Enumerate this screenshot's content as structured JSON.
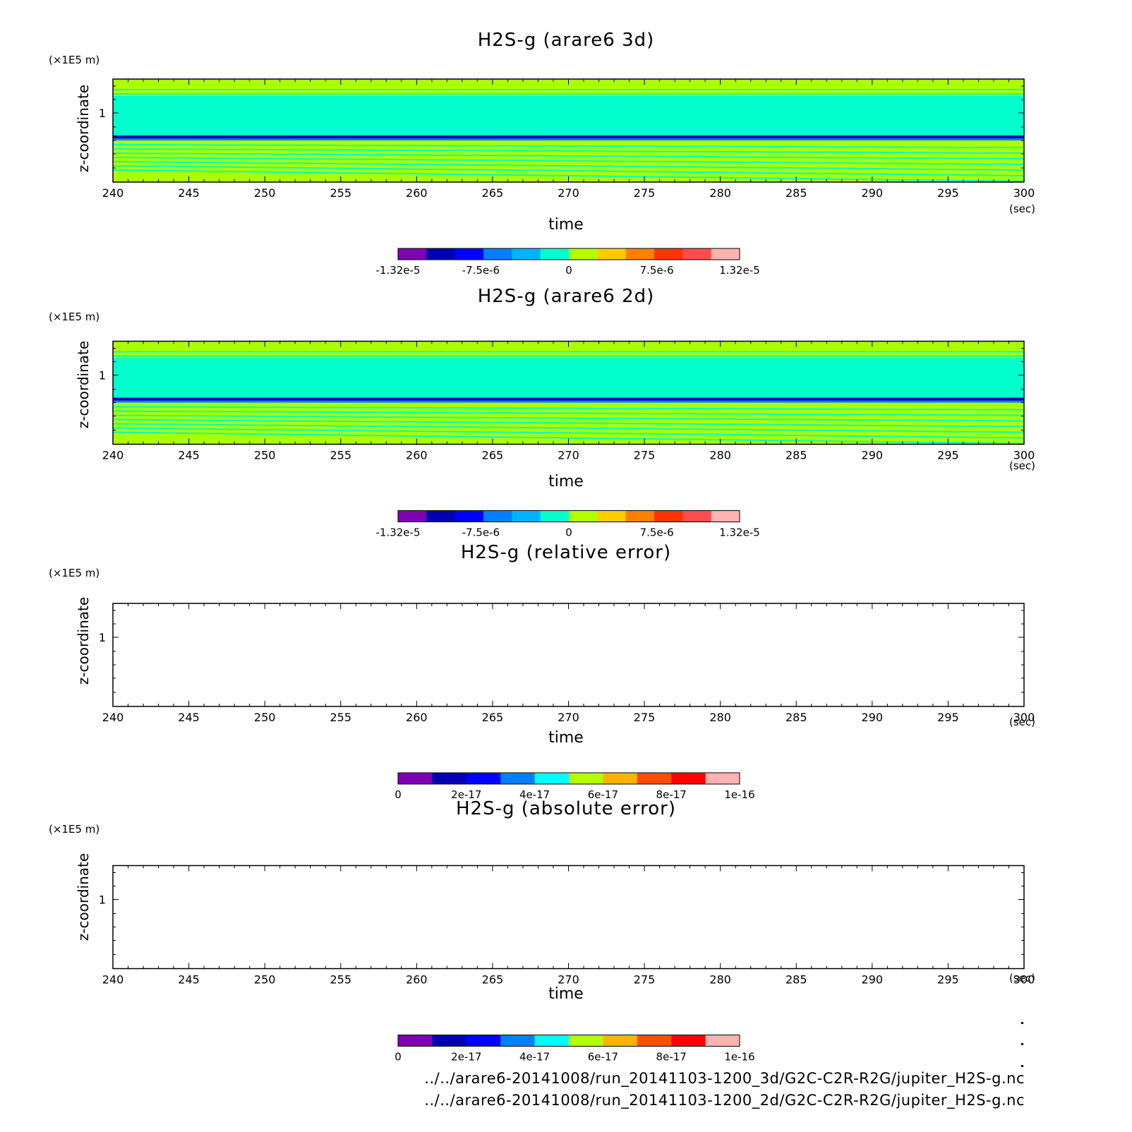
{
  "footer": {
    "files": [
      "../../arare6-20141008/run_20141103-1200_3d/G2C-C2R-R2G/jupiter_H2S-g.nc",
      "../../arare6-20141008/run_20141103-1200_2d/G2C-C2R-R2G/jupiter_H2S-g.nc"
    ]
  },
  "chart_data": [
    {
      "type": "heatmap",
      "title": "H2S-g (arare6 3d)",
      "xlabel": "time",
      "x_unit": "(sec)",
      "ylabel": "z-coordinate",
      "y_unit": "(×1E5 m)",
      "xlim": [
        240,
        300
      ],
      "x_ticks": [
        "240",
        "245",
        "250",
        "255",
        "260",
        "265",
        "270",
        "275",
        "280",
        "285",
        "290",
        "295",
        "300"
      ],
      "y_ticks": [
        "1"
      ],
      "colorbar": {
        "ticks": [
          "-1.32e-5",
          "-7.5e-6",
          "0",
          "7.5e-6",
          "1.32e-5"
        ],
        "colors": [
          "#7f00b2",
          "#0000b2",
          "#0000ff",
          "#0080ff",
          "#00b2ff",
          "#00ffcc",
          "#b2ff00",
          "#ffcc00",
          "#ff8000",
          "#ff3300",
          "#ff4d4d",
          "#ffb2b2"
        ]
      },
      "fields": {
        "upper_mid_band": {
          "color": "#00ffcc"
        },
        "background": {
          "color": "#aaff00"
        },
        "interface_line": {
          "color": "#0000b2"
        }
      }
    },
    {
      "type": "heatmap",
      "title": "H2S-g (arare6 2d)",
      "xlabel": "time",
      "x_unit": "(sec)",
      "ylabel": "z-coordinate",
      "y_unit": "(×1E5 m)",
      "xlim": [
        240,
        300
      ],
      "x_ticks": [
        "240",
        "245",
        "250",
        "255",
        "260",
        "265",
        "270",
        "275",
        "280",
        "285",
        "290",
        "295",
        "300"
      ],
      "y_ticks": [
        "1"
      ],
      "colorbar": {
        "ticks": [
          "-1.32e-5",
          "-7.5e-6",
          "0",
          "7.5e-6",
          "1.32e-5"
        ],
        "colors": [
          "#7f00b2",
          "#0000b2",
          "#0000ff",
          "#0080ff",
          "#00b2ff",
          "#00ffcc",
          "#b2ff00",
          "#ffcc00",
          "#ff8000",
          "#ff3300",
          "#ff4d4d",
          "#ffb2b2"
        ]
      },
      "fields": {
        "upper_mid_band": {
          "color": "#00ffcc"
        },
        "background": {
          "color": "#aaff00"
        },
        "interface_line": {
          "color": "#0000b2"
        }
      }
    },
    {
      "type": "heatmap",
      "title": "H2S-g (relative error)",
      "xlabel": "time",
      "x_unit": "(sec)",
      "ylabel": "z-coordinate",
      "y_unit": "(×1E5 m)",
      "xlim": [
        240,
        300
      ],
      "x_ticks": [
        "240",
        "245",
        "250",
        "255",
        "260",
        "265",
        "270",
        "275",
        "280",
        "285",
        "290",
        "295",
        "300"
      ],
      "y_ticks": [
        "1"
      ],
      "colorbar": {
        "ticks": [
          "0",
          "2e-17",
          "4e-17",
          "6e-17",
          "8e-17",
          "1e-16"
        ],
        "colors": [
          "#7f00b2",
          "#0000b2",
          "#0000ff",
          "#0080ff",
          "#00ffff",
          "#b2ff00",
          "#ffb200",
          "#ff4d00",
          "#ff0000",
          "#ffb2b2"
        ]
      },
      "empty": true
    },
    {
      "type": "heatmap",
      "title": "H2S-g (absolute error)",
      "xlabel": "time",
      "x_unit": "(sec)",
      "ylabel": "z-coordinate",
      "y_unit": "(×1E5 m)",
      "xlim": [
        240,
        300
      ],
      "x_ticks": [
        "240",
        "245",
        "250",
        "255",
        "260",
        "265",
        "270",
        "275",
        "280",
        "285",
        "290",
        "295",
        "300"
      ],
      "y_ticks": [
        "1"
      ],
      "colorbar": {
        "ticks": [
          "0",
          "2e-17",
          "4e-17",
          "6e-17",
          "8e-17",
          "1e-16"
        ],
        "colors": [
          "#7f00b2",
          "#0000b2",
          "#0000ff",
          "#0080ff",
          "#00ffff",
          "#b2ff00",
          "#ffb200",
          "#ff4d00",
          "#ff0000",
          "#ffb2b2"
        ]
      },
      "empty": true
    }
  ]
}
